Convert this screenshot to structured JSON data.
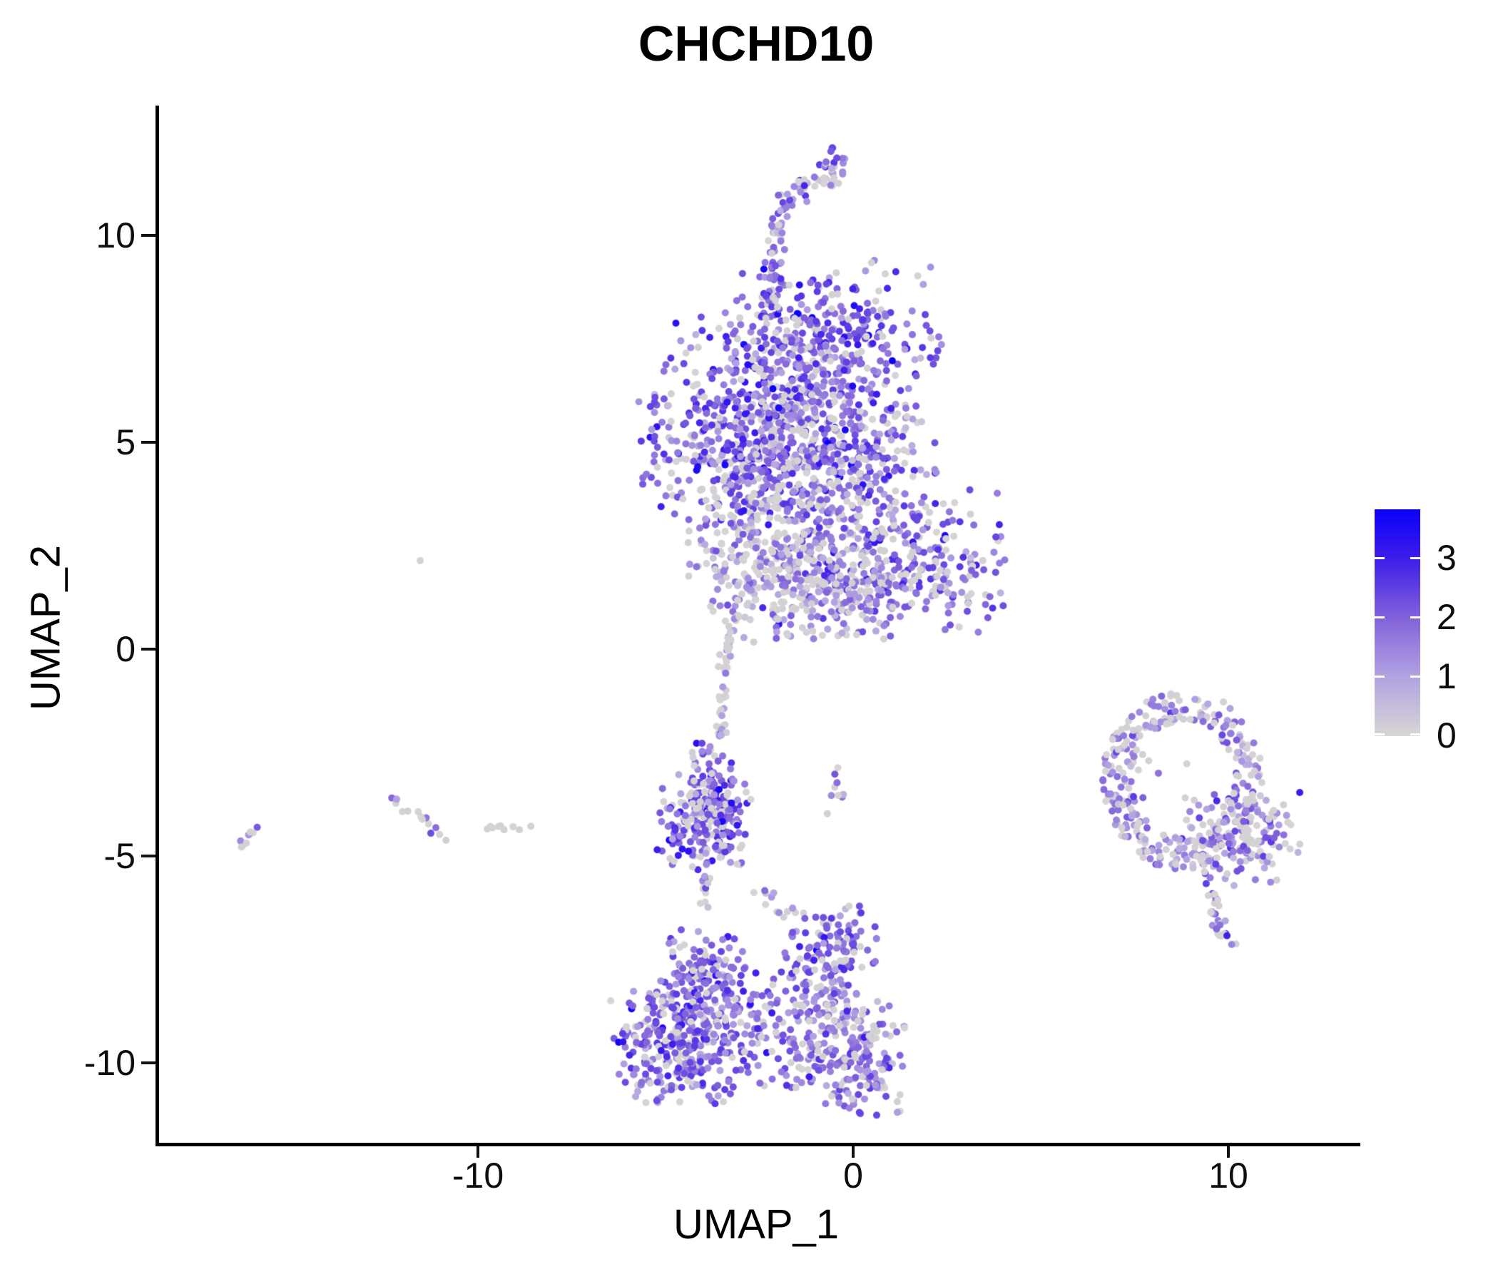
{
  "title": "CHCHD10",
  "x_axis": {
    "label": "UMAP_1",
    "ticks": [
      "-10",
      "0",
      "10"
    ]
  },
  "y_axis": {
    "label": "UMAP_2",
    "ticks": [
      "10",
      "5",
      "0",
      "-5",
      "-10"
    ]
  },
  "legend": {
    "labels": [
      "3",
      "2",
      "1",
      "0"
    ]
  },
  "chart_data": {
    "type": "scatter",
    "title": "CHCHD10",
    "xlabel": "UMAP_1",
    "ylabel": "UMAP_2",
    "xlim": [
      -18.6,
      13.4
    ],
    "ylim": [
      -12.0,
      13.1
    ],
    "x_ticks": [
      -10,
      0,
      10
    ],
    "y_ticks": [
      -10,
      -5,
      0,
      5,
      10
    ],
    "grid": false,
    "legend_position": "right",
    "color_scale": {
      "low": "#D6D4D4",
      "high": "#0A00FA",
      "value_max": 3.8,
      "legend_ticks": [
        0,
        1,
        2,
        3
      ],
      "stops": [
        [
          0,
          "#D6D4D4"
        ],
        [
          0.263,
          "#B2A2E1"
        ],
        [
          0.526,
          "#8161DA"
        ],
        [
          0.789,
          "#3C1CEA"
        ],
        [
          1,
          "#0A00FA"
        ]
      ]
    },
    "point_radius": 5,
    "seed": 20,
    "clusters": [
      {
        "name": "main-blob-top-right",
        "shape": "gauss",
        "cx": -0.59,
        "cy": 7.6,
        "sx": 1.6,
        "sy": 0.95,
        "n": 260,
        "expr": {
          "p0": 0.18,
          "mu": 2.0,
          "sigma": 0.65
        }
      },
      {
        "name": "main-blob-core",
        "shape": "gauss",
        "cx": -2.0,
        "cy": 6.05,
        "sx": 1.85,
        "sy": 1.15,
        "n": 420,
        "expr": {
          "p0": 0.22,
          "mu": 1.95,
          "sigma": 0.7
        }
      },
      {
        "name": "main-blob-lower-left",
        "shape": "gauss",
        "cx": -2.6,
        "cy": 4.5,
        "sx": 1.65,
        "sy": 0.9,
        "n": 300,
        "expr": {
          "p0": 0.22,
          "mu": 2.05,
          "sigma": 0.7
        }
      },
      {
        "name": "main-blob-lower-right",
        "shape": "gauss",
        "cx": -0.3,
        "cy": 4.65,
        "sx": 1.5,
        "sy": 0.9,
        "n": 240,
        "expr": {
          "p0": 0.28,
          "mu": 1.8,
          "sigma": 0.7
        }
      },
      {
        "name": "top-arm",
        "shape": "curve",
        "pts": [
          [
            -2.25,
            7.9
          ],
          [
            -2.2,
            9.0
          ],
          [
            -2.1,
            10.0
          ],
          [
            -1.8,
            10.8
          ],
          [
            -1.15,
            11.3
          ],
          [
            -0.5,
            11.7
          ],
          [
            -0.4,
            12.0
          ]
        ],
        "jitter": 0.15,
        "n": 95,
        "expr": {
          "p0": 0.2,
          "mu": 1.7,
          "sigma": 0.6
        }
      },
      {
        "name": "top-arm-hook",
        "shape": "gauss",
        "cx": -0.45,
        "cy": 11.85,
        "sx": 0.18,
        "sy": 0.2,
        "n": 10,
        "expr": {
          "p0": 0.1,
          "mu": 2.0,
          "sigma": 0.5
        }
      },
      {
        "name": "top-arm-gray-pocket",
        "shape": "gauss",
        "cx": -0.65,
        "cy": 11.35,
        "sx": 0.22,
        "sy": 0.18,
        "n": 10,
        "expr": {
          "p0": 0.7,
          "mu": 1.2,
          "sigma": 0.4
        }
      },
      {
        "name": "right-lobe",
        "shape": "gauss",
        "cx": 0.95,
        "cy": 2.1,
        "sx": 1.65,
        "sy": 0.95,
        "n": 380,
        "expr": {
          "p0": 0.25,
          "mu": 1.9,
          "sigma": 0.7
        }
      },
      {
        "name": "neck-left",
        "shape": "gauss",
        "cx": -2.5,
        "cy": 2.6,
        "sx": 1.0,
        "sy": 0.9,
        "n": 190,
        "expr": {
          "p0": 0.5,
          "mu": 1.5,
          "sigma": 0.55
        }
      },
      {
        "name": "neck-lower",
        "shape": "gauss",
        "cx": -1.05,
        "cy": 1.55,
        "sx": 1.45,
        "sy": 0.75,
        "n": 210,
        "expr": {
          "p0": 0.55,
          "mu": 1.35,
          "sigma": 0.5
        }
      },
      {
        "name": "gray-trail",
        "shape": "curve",
        "pts": [
          [
            -3.05,
            1.1
          ],
          [
            -3.3,
            0.15
          ],
          [
            -3.45,
            -0.9
          ],
          [
            -3.5,
            -1.9
          ],
          [
            -3.72,
            -2.55
          ]
        ],
        "jitter": 0.08,
        "n": 55,
        "expr": {
          "p0": 0.8,
          "mu": 1.3,
          "sigma": 0.4
        }
      },
      {
        "name": "mid-left-cluster-top",
        "shape": "gauss",
        "cx": -3.73,
        "cy": -3.3,
        "sx": 0.5,
        "sy": 0.55,
        "n": 90,
        "expr": {
          "p0": 0.25,
          "mu": 2.0,
          "sigma": 0.7
        }
      },
      {
        "name": "mid-left-cluster",
        "shape": "gauss",
        "cx": -4.0,
        "cy": -4.3,
        "sx": 0.68,
        "sy": 0.6,
        "n": 170,
        "expr": {
          "p0": 0.25,
          "mu": 2.1,
          "sigma": 0.7
        }
      },
      {
        "name": "mid-left-tail",
        "shape": "curve",
        "pts": [
          [
            -3.92,
            -5.15
          ],
          [
            -3.97,
            -5.7
          ],
          [
            -4.0,
            -6.15
          ]
        ],
        "jitter": 0.07,
        "n": 16,
        "expr": {
          "p0": 0.45,
          "mu": 1.6,
          "sigma": 0.5
        }
      },
      {
        "name": "mid-small-arm",
        "shape": "curve",
        "pts": [
          [
            -0.55,
            -2.9
          ],
          [
            -0.35,
            -3.5
          ],
          [
            -0.3,
            -4.3
          ]
        ],
        "jitter": 0.12,
        "n": 10,
        "expr": {
          "p0": 0.3,
          "mu": 1.6,
          "sigma": 0.6
        }
      },
      {
        "name": "diag-connector",
        "shape": "curve",
        "pts": [
          [
            -2.45,
            -5.85
          ],
          [
            -2.0,
            -6.35
          ],
          [
            -1.63,
            -6.8
          ]
        ],
        "jitter": 0.12,
        "n": 11,
        "expr": {
          "p0": 0.5,
          "mu": 1.5,
          "sigma": 0.5
        }
      },
      {
        "name": "bottom-peak",
        "shape": "gauss",
        "cx": -3.95,
        "cy": -7.85,
        "sx": 0.55,
        "sy": 0.65,
        "n": 120,
        "expr": {
          "p0": 0.18,
          "mu": 1.95,
          "sigma": 0.6
        }
      },
      {
        "name": "bottom-left-lobe",
        "shape": "gauss",
        "cx": -4.7,
        "cy": -9.5,
        "sx": 0.95,
        "sy": 0.8,
        "n": 300,
        "expr": {
          "p0": 0.22,
          "mu": 1.9,
          "sigma": 0.65
        }
      },
      {
        "name": "bottom-middle-band",
        "shape": "gauss",
        "cx": -2.4,
        "cy": -9.2,
        "sx": 1.3,
        "sy": 0.8,
        "n": 170,
        "expr": {
          "p0": 0.2,
          "mu": 1.9,
          "sigma": 0.6
        }
      },
      {
        "name": "bottom-right-arm-upper",
        "shape": "gauss",
        "cx": -0.6,
        "cy": -7.25,
        "sx": 0.7,
        "sy": 0.55,
        "n": 110,
        "expr": {
          "p0": 0.22,
          "mu": 1.9,
          "sigma": 0.6
        }
      },
      {
        "name": "bottom-right-arm-lower",
        "shape": "gauss",
        "cx": -0.85,
        "cy": -8.3,
        "sx": 0.6,
        "sy": 0.5,
        "n": 70,
        "expr": {
          "p0": 0.25,
          "mu": 1.8,
          "sigma": 0.6
        }
      },
      {
        "name": "bottom-right-lobe",
        "shape": "gauss",
        "cx": 0.0,
        "cy": -9.85,
        "sx": 0.78,
        "sy": 0.75,
        "n": 170,
        "expr": {
          "p0": 0.3,
          "mu": 1.7,
          "sigma": 0.6
        }
      },
      {
        "name": "bottom-right-tip",
        "shape": "curve",
        "pts": [
          [
            0.35,
            -10.25
          ],
          [
            0.68,
            -10.65
          ]
        ],
        "jitter": 0.1,
        "n": 8,
        "expr": {
          "p0": 0.4,
          "mu": 1.5,
          "sigma": 0.5
        }
      },
      {
        "name": "ring",
        "shape": "ring",
        "cx": 8.78,
        "cy": -3.15,
        "rx": 1.9,
        "ry": 1.95,
        "inner": 0.72,
        "outer": 1.12,
        "n": 300,
        "expr": {
          "p0": 0.45,
          "mu": 1.5,
          "sigma": 0.6
        }
      },
      {
        "name": "ring-inner-sparse",
        "shape": "gauss",
        "cx": 8.6,
        "cy": -3.2,
        "sx": 0.7,
        "sy": 0.6,
        "n": 8,
        "expr": {
          "p0": 0.6,
          "mu": 1.2,
          "sigma": 0.4
        }
      },
      {
        "name": "ring-right-blob",
        "shape": "gauss",
        "cx": 10.4,
        "cy": -4.5,
        "sx": 0.8,
        "sy": 0.65,
        "n": 150,
        "expr": {
          "p0": 0.4,
          "mu": 1.6,
          "sigma": 0.6
        }
      },
      {
        "name": "ring-tail",
        "shape": "curve",
        "pts": [
          [
            9.55,
            -5.7
          ],
          [
            9.7,
            -6.45
          ],
          [
            9.95,
            -7.2
          ]
        ],
        "jitter": 0.13,
        "n": 28,
        "expr": {
          "p0": 0.5,
          "mu": 1.5,
          "sigma": 0.55
        }
      },
      {
        "name": "left-streak-far",
        "shape": "curve",
        "pts": [
          [
            -16.4,
            -4.8
          ],
          [
            -15.9,
            -4.25
          ]
        ],
        "jitter": 0.05,
        "n": 8,
        "expr": {
          "p0": 0.8,
          "mu": 1.7,
          "sigma": 0.4
        }
      },
      {
        "name": "left-streak-mid",
        "shape": "curve",
        "pts": [
          [
            -12.4,
            -3.55
          ],
          [
            -11.9,
            -3.85
          ],
          [
            -11.3,
            -4.2
          ],
          [
            -10.8,
            -4.55
          ]
        ],
        "jitter": 0.07,
        "n": 14,
        "expr": {
          "p0": 0.6,
          "mu": 1.5,
          "sigma": 0.5
        }
      },
      {
        "name": "left-streak-row",
        "shape": "curve",
        "pts": [
          [
            -10.05,
            -4.25
          ],
          [
            -9.3,
            -4.3
          ],
          [
            -8.55,
            -4.35
          ]
        ],
        "jitter": 0.05,
        "n": 9,
        "expr": {
          "p0": 0.75,
          "mu": 1.7,
          "sigma": 0.6
        }
      },
      {
        "name": "left-singleton",
        "shape": "points",
        "pts": [
          [
            -11.54,
            2.14,
            0.05
          ]
        ]
      }
    ]
  }
}
